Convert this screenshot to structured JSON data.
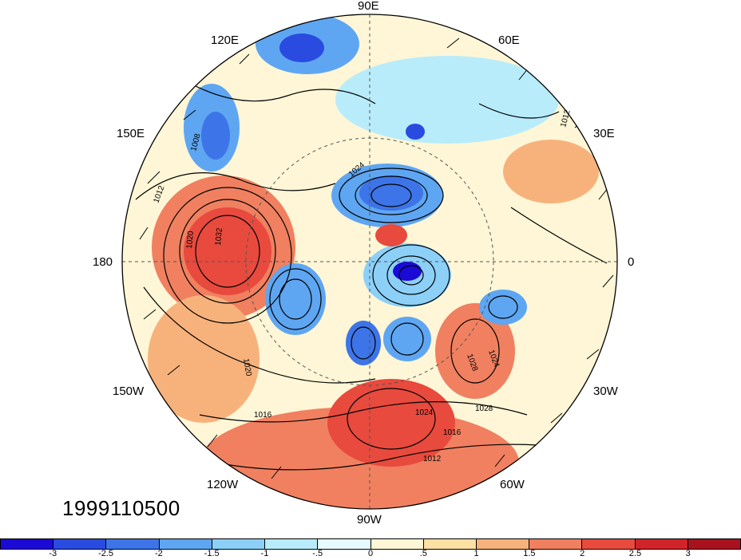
{
  "map": {
    "projection": "north polar stereographic",
    "center": "North Pole",
    "variable_shading": "anomaly (diverging blue-red)",
    "contour_interval": 4,
    "has_wind_barbs": true,
    "has_coastlines": true,
    "graticule": "dashed"
  },
  "date_stamp": "1999110500",
  "lon_labels": {
    "lon_90e": "90E",
    "lon_120e": "120E",
    "lon_60e": "60E",
    "lon_150e": "150E",
    "lon_30e": "30E",
    "lon_180": "180",
    "lon_0": "0",
    "lon_150w": "150W",
    "lon_30w": "30W",
    "lon_120w": "120W",
    "lon_60w": "60W",
    "lon_90w": "90W"
  },
  "contour_labels": [
    "1008",
    "1012",
    "1016",
    "1020",
    "1024",
    "1028",
    "1032"
  ],
  "colorbar": {
    "colors": [
      "#1b0ad6",
      "#2a4be0",
      "#3d74e8",
      "#5ea6f2",
      "#8cd0f8",
      "#b8ecfb",
      "#e6fbfe",
      "#fef6d6",
      "#fce0a4",
      "#f7b27c",
      "#f08060",
      "#e84a3e",
      "#d0242a",
      "#a8121e"
    ],
    "labels": [
      "-3",
      "-2.5",
      "-2",
      "-1.5",
      "-1",
      "-.5",
      "0",
      ".5",
      "1",
      "1.5",
      "2",
      "2.5",
      "3"
    ]
  }
}
